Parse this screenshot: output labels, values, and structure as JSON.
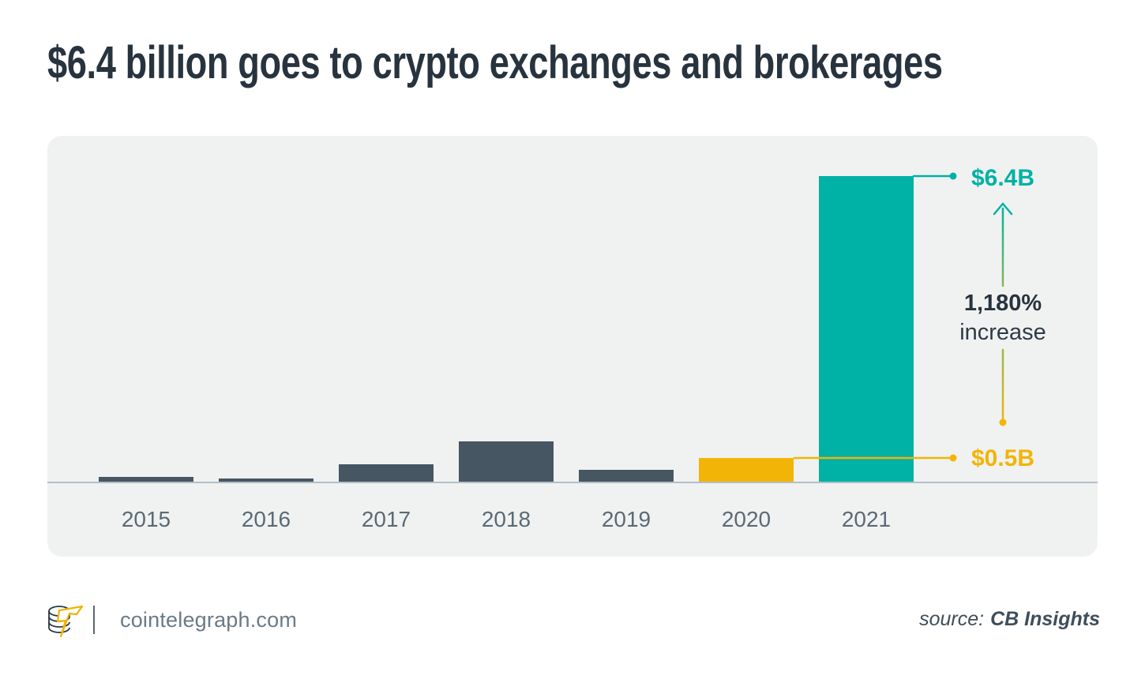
{
  "title": "$6.4 billion goes to crypto exchanges and brokerages",
  "chart_data": {
    "type": "bar",
    "categories": [
      "2015",
      "2016",
      "2017",
      "2018",
      "2019",
      "2020",
      "2021"
    ],
    "values": [
      0.1,
      0.07,
      0.36,
      0.85,
      0.25,
      0.5,
      6.4
    ],
    "unit": "billion USD",
    "bar_colors": [
      "#475663",
      "#475663",
      "#475663",
      "#475663",
      "#475663",
      "#f2b407",
      "#00b1a5"
    ],
    "title": "$6.4 billion goes to crypto exchanges and brokerages",
    "xlabel": "",
    "ylabel": "",
    "ylim": [
      0,
      7.25
    ],
    "grid": false,
    "legend": false,
    "annotations": {
      "max_label": "$6.4B",
      "min_label": "$0.5B",
      "change_value": "1,180%",
      "change_caption": "increase"
    }
  },
  "footer": {
    "site": "cointelegraph.com",
    "source_prefix": "source:",
    "source_name": "CB Insights"
  },
  "icons": {
    "logo": "cointelegraph-coins-lightning-logo"
  },
  "colors": {
    "teal": "#00b1a5",
    "amber": "#f2b407",
    "bar-dark": "#475663",
    "title": "#27333e",
    "change-cap": "#2e3a46",
    "panel-bg": "#f0f2f1",
    "axis": "#b3bfc7",
    "tick": "#5a6a76",
    "footer": "#6a7a87",
    "divider": "#5c6670",
    "source": "#3e4e5a",
    "arrow-green": "#84b75f"
  }
}
